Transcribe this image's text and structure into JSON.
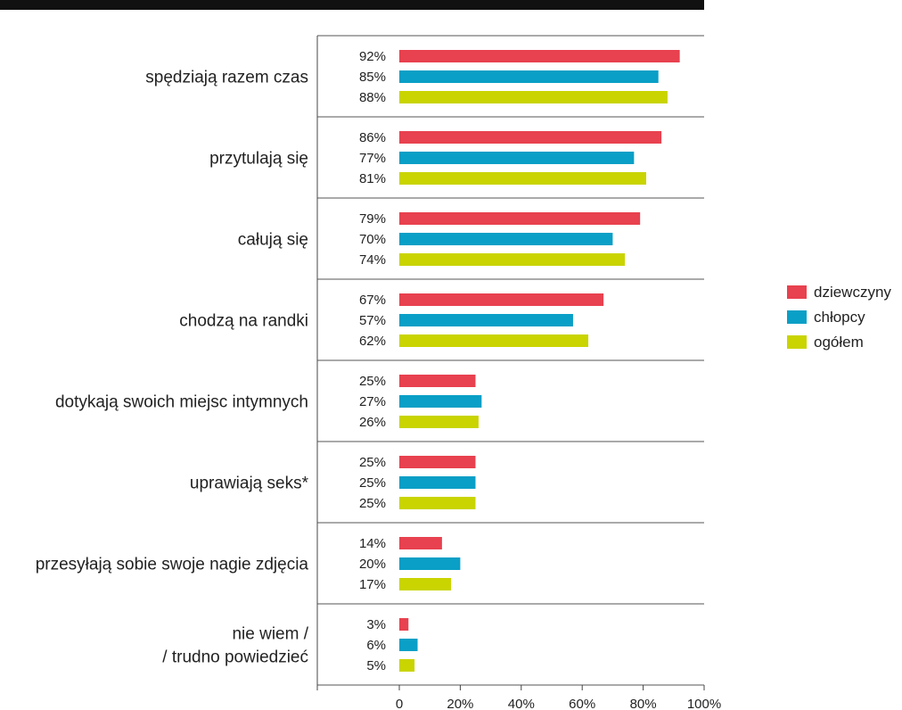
{
  "chart_data": {
    "type": "bar",
    "orientation": "horizontal",
    "categories": [
      [
        "spędziają razem czas"
      ],
      [
        "przytulają się"
      ],
      [
        "całują się"
      ],
      [
        "chodzą na randki"
      ],
      [
        "dotykają swoich miejsc intymnych"
      ],
      [
        "uprawiają seks*"
      ],
      [
        "przesyłają sobie swoje nagie zdjęcia"
      ],
      [
        "nie wiem /",
        "/ trudno powiedzieć"
      ]
    ],
    "series": [
      {
        "name": "dziewczyny",
        "color": "#e8414f",
        "values": [
          92,
          86,
          79,
          67,
          25,
          25,
          14,
          3
        ]
      },
      {
        "name": "chłopcy",
        "color": "#0a9fc6",
        "values": [
          85,
          77,
          70,
          57,
          27,
          25,
          20,
          6
        ]
      },
      {
        "name": "ogółem",
        "color": "#c9d400",
        "values": [
          88,
          81,
          74,
          62,
          26,
          25,
          17,
          5
        ]
      }
    ],
    "value_suffix": "%",
    "xlim": [
      0,
      100
    ],
    "xticks": [
      0,
      20,
      40,
      60,
      80,
      100
    ],
    "xtick_labels": [
      "0",
      "20%",
      "40%",
      "60%",
      "80%",
      "100%"
    ],
    "legend_position": "right",
    "grid": false,
    "colors": {
      "top_bar": "#111111",
      "axis": "#444444",
      "separator": "#555555",
      "text": "#222222"
    }
  }
}
